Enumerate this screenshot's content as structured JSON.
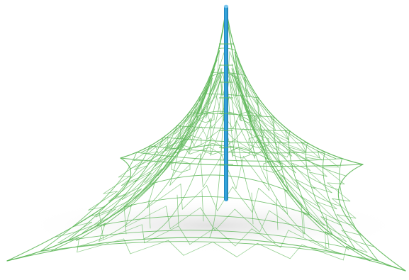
{
  "image": {
    "background": "#ffffff",
    "net_color": "#5fb85a",
    "mast_color": "#2f9fd6",
    "mast_highlight": "#7cc8ef",
    "shadow_color": "#dcdcdc"
  }
}
